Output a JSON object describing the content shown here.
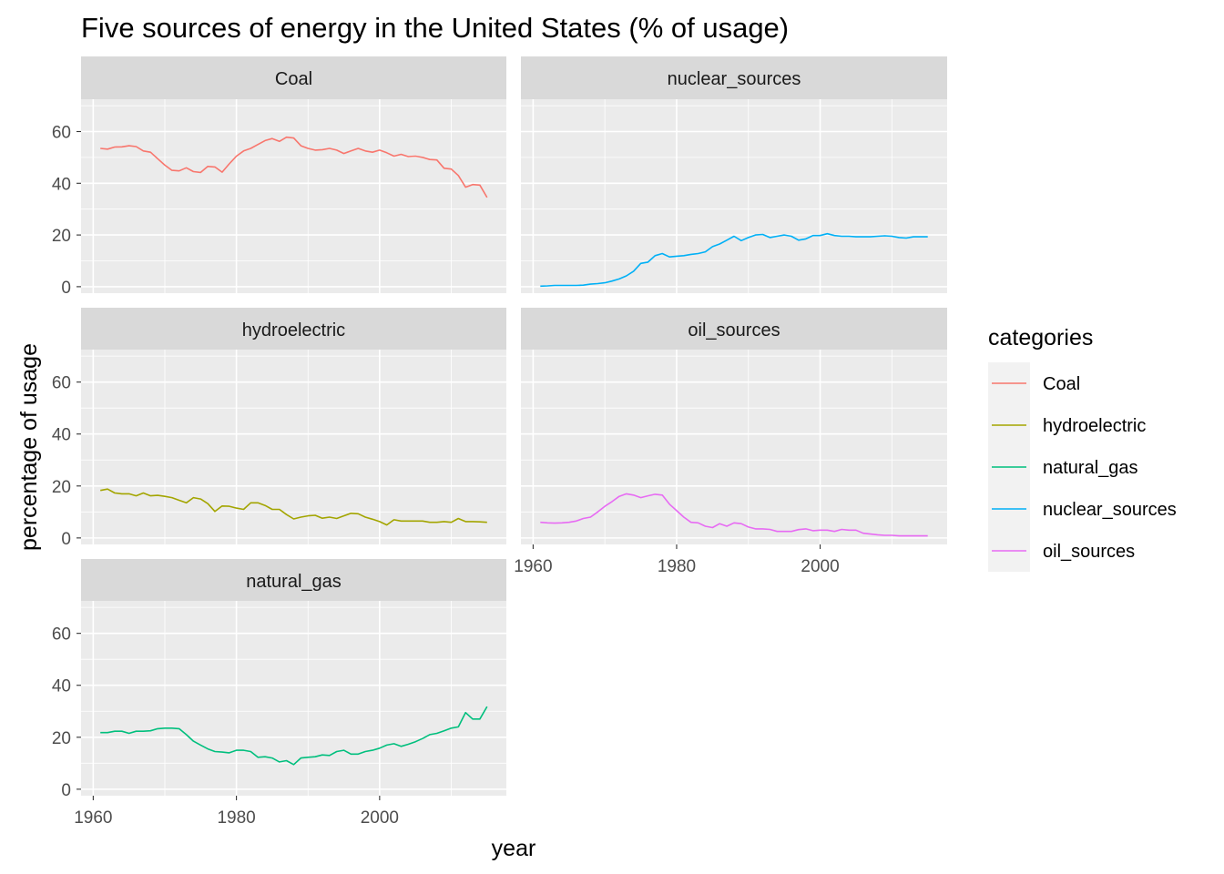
{
  "chart_data": {
    "type": "line",
    "title": "Five sources of energy in the United States (% of usage)",
    "xlabel": "year",
    "ylabel": "percentage of usage",
    "xlim": [
      1960,
      2015
    ],
    "ylim": [
      0,
      70
    ],
    "x_ticks": [
      "1960",
      "1980",
      "2000"
    ],
    "y_ticks": [
      "0",
      "20",
      "40",
      "60"
    ],
    "x_tick_values": [
      1960,
      1980,
      2000
    ],
    "y_tick_values": [
      0,
      20,
      40,
      60
    ],
    "grid": true,
    "facets": true,
    "legend": {
      "title": "categories",
      "placement": "right"
    },
    "x": [
      1961,
      1962,
      1963,
      1964,
      1965,
      1966,
      1967,
      1968,
      1969,
      1970,
      1971,
      1972,
      1973,
      1974,
      1975,
      1976,
      1977,
      1978,
      1979,
      1980,
      1981,
      1982,
      1983,
      1984,
      1985,
      1986,
      1987,
      1988,
      1989,
      1990,
      1991,
      1992,
      1993,
      1994,
      1995,
      1996,
      1997,
      1998,
      1999,
      2000,
      2001,
      2002,
      2003,
      2004,
      2005,
      2006,
      2007,
      2008,
      2009,
      2010,
      2011,
      2012,
      2013,
      2014,
      2015
    ],
    "series": [
      {
        "name": "Coal",
        "color": "#F8766D",
        "values": [
          53.5,
          53.2,
          54.0,
          54.1,
          54.5,
          54.2,
          52.5,
          52.0,
          49.5,
          47.0,
          45.0,
          44.8,
          46.0,
          44.5,
          44.2,
          46.5,
          46.3,
          44.3,
          47.5,
          50.5,
          52.5,
          53.5,
          55.0,
          56.5,
          57.3,
          56.2,
          57.8,
          57.5,
          54.5,
          53.5,
          52.8,
          53.0,
          53.5,
          52.8,
          51.5,
          52.5,
          53.5,
          52.5,
          52.0,
          52.8,
          51.8,
          50.5,
          51.2,
          50.3,
          50.5,
          50.0,
          49.2,
          49.0,
          45.8,
          45.5,
          43.0,
          38.5,
          39.5,
          39.3,
          34.5
        ]
      },
      {
        "name": "hydroelectric",
        "color": "#A3A500",
        "values": [
          18.3,
          18.8,
          17.3,
          17.0,
          17.0,
          16.2,
          17.3,
          16.2,
          16.4,
          16.0,
          15.5,
          14.5,
          13.5,
          15.5,
          15.0,
          13.2,
          10.2,
          12.3,
          12.2,
          11.5,
          11.0,
          13.5,
          13.5,
          12.5,
          11.0,
          11.0,
          9.0,
          7.3,
          8.0,
          8.5,
          8.7,
          7.6,
          8.0,
          7.5,
          8.5,
          9.5,
          9.3,
          8.0,
          7.2,
          6.3,
          5.0,
          7.0,
          6.5,
          6.5,
          6.5,
          6.5,
          6.0,
          6.0,
          6.3,
          6.0,
          7.5,
          6.3,
          6.3,
          6.2,
          6.0
        ]
      },
      {
        "name": "natural_gas",
        "color": "#00BF7D",
        "values": [
          21.8,
          21.8,
          22.3,
          22.3,
          21.5,
          22.3,
          22.3,
          22.5,
          23.3,
          23.5,
          23.5,
          23.3,
          21.0,
          18.5,
          17.0,
          15.5,
          14.5,
          14.3,
          14.0,
          15.0,
          15.0,
          14.5,
          12.3,
          12.5,
          12.0,
          10.5,
          11.0,
          9.5,
          12.0,
          12.3,
          12.5,
          13.2,
          13.0,
          14.5,
          15.0,
          13.5,
          13.5,
          14.5,
          15.0,
          15.8,
          17.0,
          17.5,
          16.5,
          17.3,
          18.3,
          19.5,
          21.0,
          21.5,
          22.5,
          23.5,
          24.0,
          29.5,
          27.0,
          27.0,
          31.8
        ]
      },
      {
        "name": "nuclear_sources",
        "color": "#00B0F6",
        "values": [
          0.2,
          0.3,
          0.5,
          0.5,
          0.5,
          0.5,
          0.6,
          1.0,
          1.2,
          1.5,
          2.2,
          3.0,
          4.2,
          6.0,
          9.0,
          9.5,
          12.0,
          12.8,
          11.5,
          11.8,
          12.0,
          12.5,
          12.8,
          13.5,
          15.5,
          16.5,
          18.0,
          19.5,
          17.8,
          19.0,
          20.0,
          20.2,
          19.0,
          19.5,
          20.0,
          19.5,
          18.0,
          18.5,
          19.8,
          19.8,
          20.5,
          19.8,
          19.5,
          19.5,
          19.3,
          19.3,
          19.3,
          19.5,
          19.7,
          19.5,
          19.0,
          18.8,
          19.3,
          19.3,
          19.3
        ]
      },
      {
        "name": "oil_sources",
        "color": "#E76BF3",
        "values": [
          6.0,
          5.8,
          5.7,
          5.8,
          6.0,
          6.5,
          7.5,
          8.0,
          10.0,
          12.2,
          14.0,
          16.0,
          17.0,
          16.5,
          15.5,
          16.2,
          16.8,
          16.5,
          13.0,
          10.5,
          8.0,
          6.0,
          5.8,
          4.5,
          4.0,
          5.5,
          4.5,
          5.8,
          5.5,
          4.2,
          3.5,
          3.5,
          3.3,
          2.5,
          2.5,
          2.5,
          3.2,
          3.5,
          2.8,
          3.0,
          3.0,
          2.5,
          3.3,
          3.0,
          3.0,
          1.8,
          1.5,
          1.2,
          1.0,
          1.0,
          0.8,
          0.8,
          0.8,
          0.8,
          0.8
        ]
      }
    ],
    "panel_order": [
      "Coal",
      "nuclear_sources",
      "hydroelectric",
      "oil_sources",
      "natural_gas"
    ]
  }
}
